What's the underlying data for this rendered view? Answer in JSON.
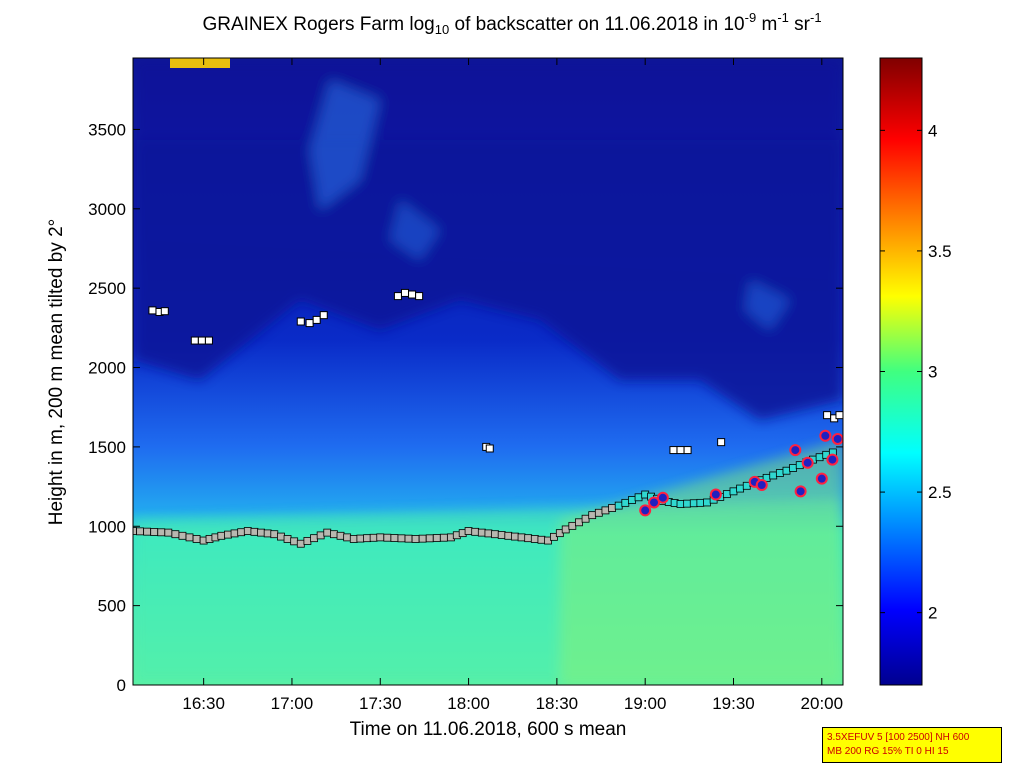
{
  "figure": {
    "title_parts": {
      "pre": "GRAINEX Rogers Farm log",
      "sub": "10",
      "mid": " of backscatter on 11.06.2018 in 10",
      "sup1": "-9",
      "unit_m": " m",
      "sup2": "-1",
      "unit_sr": " sr",
      "sup3": "-1"
    },
    "settings_box": {
      "line1": "3.5XEFUV 5 [100 2500] NH 600",
      "line2": "MB 200 RG 15% TI 0 HI 15"
    },
    "colors": {
      "box_bg": "#ffff00",
      "box_text": "#cc0000"
    }
  },
  "chart_data": {
    "type": "heatmap",
    "title": "GRAINEX Rogers Farm log10 of backscatter on 11.06.2018 in 10-9 m-1 sr-1",
    "xlabel": "Time on 11.06.2018, 600 s mean",
    "ylabel": "Height in m, 200 m mean tilted by 2°",
    "x_range_hours": [
      16.1,
      20.12
    ],
    "x_ticks": [
      16.5,
      17.0,
      17.5,
      18.0,
      18.5,
      19.0,
      19.5,
      20.0
    ],
    "x_tick_labels": [
      "16:30",
      "17:00",
      "17:30",
      "18:00",
      "18:30",
      "19:00",
      "19:30",
      "20:00"
    ],
    "ylim": [
      0,
      3950
    ],
    "y_ticks": [
      0,
      500,
      1000,
      1500,
      2000,
      2500,
      3000,
      3500
    ],
    "y_tick_labels": [
      "0",
      "500",
      "1000",
      "1500",
      "2000",
      "2500",
      "3000",
      "3500"
    ],
    "colorbar": {
      "range": [
        1.7,
        4.3
      ],
      "ticks": [
        2,
        2.5,
        3,
        3.5,
        4
      ],
      "tick_labels": [
        "2",
        "2.5",
        "3",
        "3.5",
        "4"
      ],
      "colormap": "jet"
    },
    "boundary_layer_top": {
      "x": [
        16.1,
        16.3,
        16.5,
        16.6,
        16.75,
        16.9,
        17.05,
        17.2,
        17.35,
        17.5,
        17.7,
        17.9,
        18.0,
        18.15,
        18.3,
        18.45,
        18.55,
        18.7,
        18.85,
        19.0,
        19.1,
        19.2,
        19.35,
        19.5,
        19.65,
        19.8,
        19.95,
        20.1
      ],
      "y": [
        970,
        960,
        910,
        940,
        970,
        950,
        890,
        960,
        920,
        930,
        920,
        930,
        970,
        950,
        930,
        910,
        980,
        1070,
        1130,
        1200,
        1160,
        1140,
        1150,
        1220,
        1290,
        1350,
        1420,
        1480
      ]
    },
    "cloud_marks": [
      {
        "x": 16.21,
        "y": 2360
      },
      {
        "x": 16.25,
        "y": 2350
      },
      {
        "x": 16.28,
        "y": 2355
      },
      {
        "x": 16.45,
        "y": 2170
      },
      {
        "x": 16.49,
        "y": 2170
      },
      {
        "x": 16.53,
        "y": 2170
      },
      {
        "x": 17.05,
        "y": 2290
      },
      {
        "x": 17.1,
        "y": 2280
      },
      {
        "x": 17.14,
        "y": 2300
      },
      {
        "x": 17.18,
        "y": 2330
      },
      {
        "x": 17.6,
        "y": 2450
      },
      {
        "x": 17.64,
        "y": 2470
      },
      {
        "x": 17.68,
        "y": 2460
      },
      {
        "x": 17.72,
        "y": 2450
      },
      {
        "x": 18.1,
        "y": 1500
      },
      {
        "x": 18.12,
        "y": 1490
      },
      {
        "x": 19.16,
        "y": 1480
      },
      {
        "x": 19.2,
        "y": 1480
      },
      {
        "x": 19.24,
        "y": 1480
      },
      {
        "x": 19.43,
        "y": 1530
      },
      {
        "x": 20.03,
        "y": 1700
      },
      {
        "x": 20.07,
        "y": 1680
      },
      {
        "x": 20.1,
        "y": 1700
      }
    ],
    "precip_marks": [
      {
        "x": 19.0,
        "y": 1100
      },
      {
        "x": 19.05,
        "y": 1150
      },
      {
        "x": 19.1,
        "y": 1180
      },
      {
        "x": 19.4,
        "y": 1200
      },
      {
        "x": 19.62,
        "y": 1280
      },
      {
        "x": 19.66,
        "y": 1260
      },
      {
        "x": 19.85,
        "y": 1480
      },
      {
        "x": 19.88,
        "y": 1220
      },
      {
        "x": 19.92,
        "y": 1400
      },
      {
        "x": 20.0,
        "y": 1300
      },
      {
        "x": 20.02,
        "y": 1570
      },
      {
        "x": 20.06,
        "y": 1420
      },
      {
        "x": 20.09,
        "y": 1550
      }
    ]
  }
}
